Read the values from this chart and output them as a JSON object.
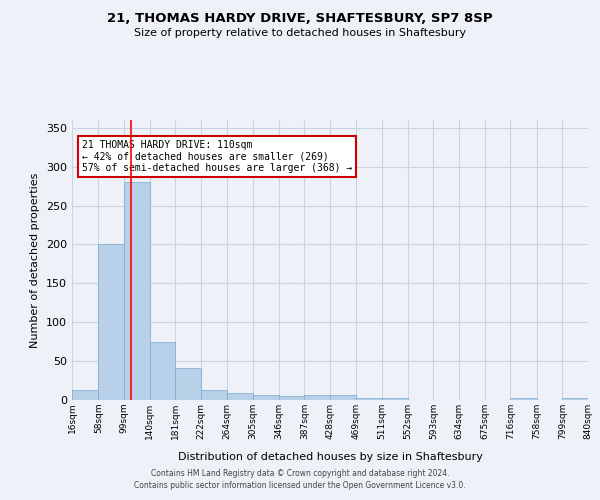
{
  "title": "21, THOMAS HARDY DRIVE, SHAFTESBURY, SP7 8SP",
  "subtitle": "Size of property relative to detached houses in Shaftesbury",
  "xlabel": "Distribution of detached houses by size in Shaftesbury",
  "ylabel": "Number of detached properties",
  "background_color": "#eef2f8",
  "bar_color": "#b8d0e8",
  "bar_edge_color": "#7aaacb",
  "grid_color": "#c8d4e4",
  "bins": [
    16,
    58,
    99,
    140,
    181,
    222,
    264,
    305,
    346,
    387,
    428,
    469,
    511,
    552,
    593,
    634,
    675,
    716,
    758,
    799,
    840
  ],
  "bin_labels": [
    "16sqm",
    "58sqm",
    "99sqm",
    "140sqm",
    "181sqm",
    "222sqm",
    "264sqm",
    "305sqm",
    "346sqm",
    "387sqm",
    "428sqm",
    "469sqm",
    "511sqm",
    "552sqm",
    "593sqm",
    "634sqm",
    "675sqm",
    "716sqm",
    "758sqm",
    "799sqm",
    "840sqm"
  ],
  "counts": [
    13,
    201,
    280,
    75,
    41,
    13,
    9,
    7,
    5,
    6,
    6,
    3,
    2,
    0,
    0,
    0,
    0,
    3,
    0,
    3
  ],
  "red_line_x": 110,
  "annotation_text": "21 THOMAS HARDY DRIVE: 110sqm\n← 42% of detached houses are smaller (269)\n57% of semi-detached houses are larger (368) →",
  "annotation_box_color": "white",
  "annotation_box_edge": "#cc0000",
  "ylim": [
    0,
    360
  ],
  "yticks": [
    0,
    50,
    100,
    150,
    200,
    250,
    300,
    350
  ],
  "footer": "Contains HM Land Registry data © Crown copyright and database right 2024.\nContains public sector information licensed under the Open Government Licence v3.0."
}
